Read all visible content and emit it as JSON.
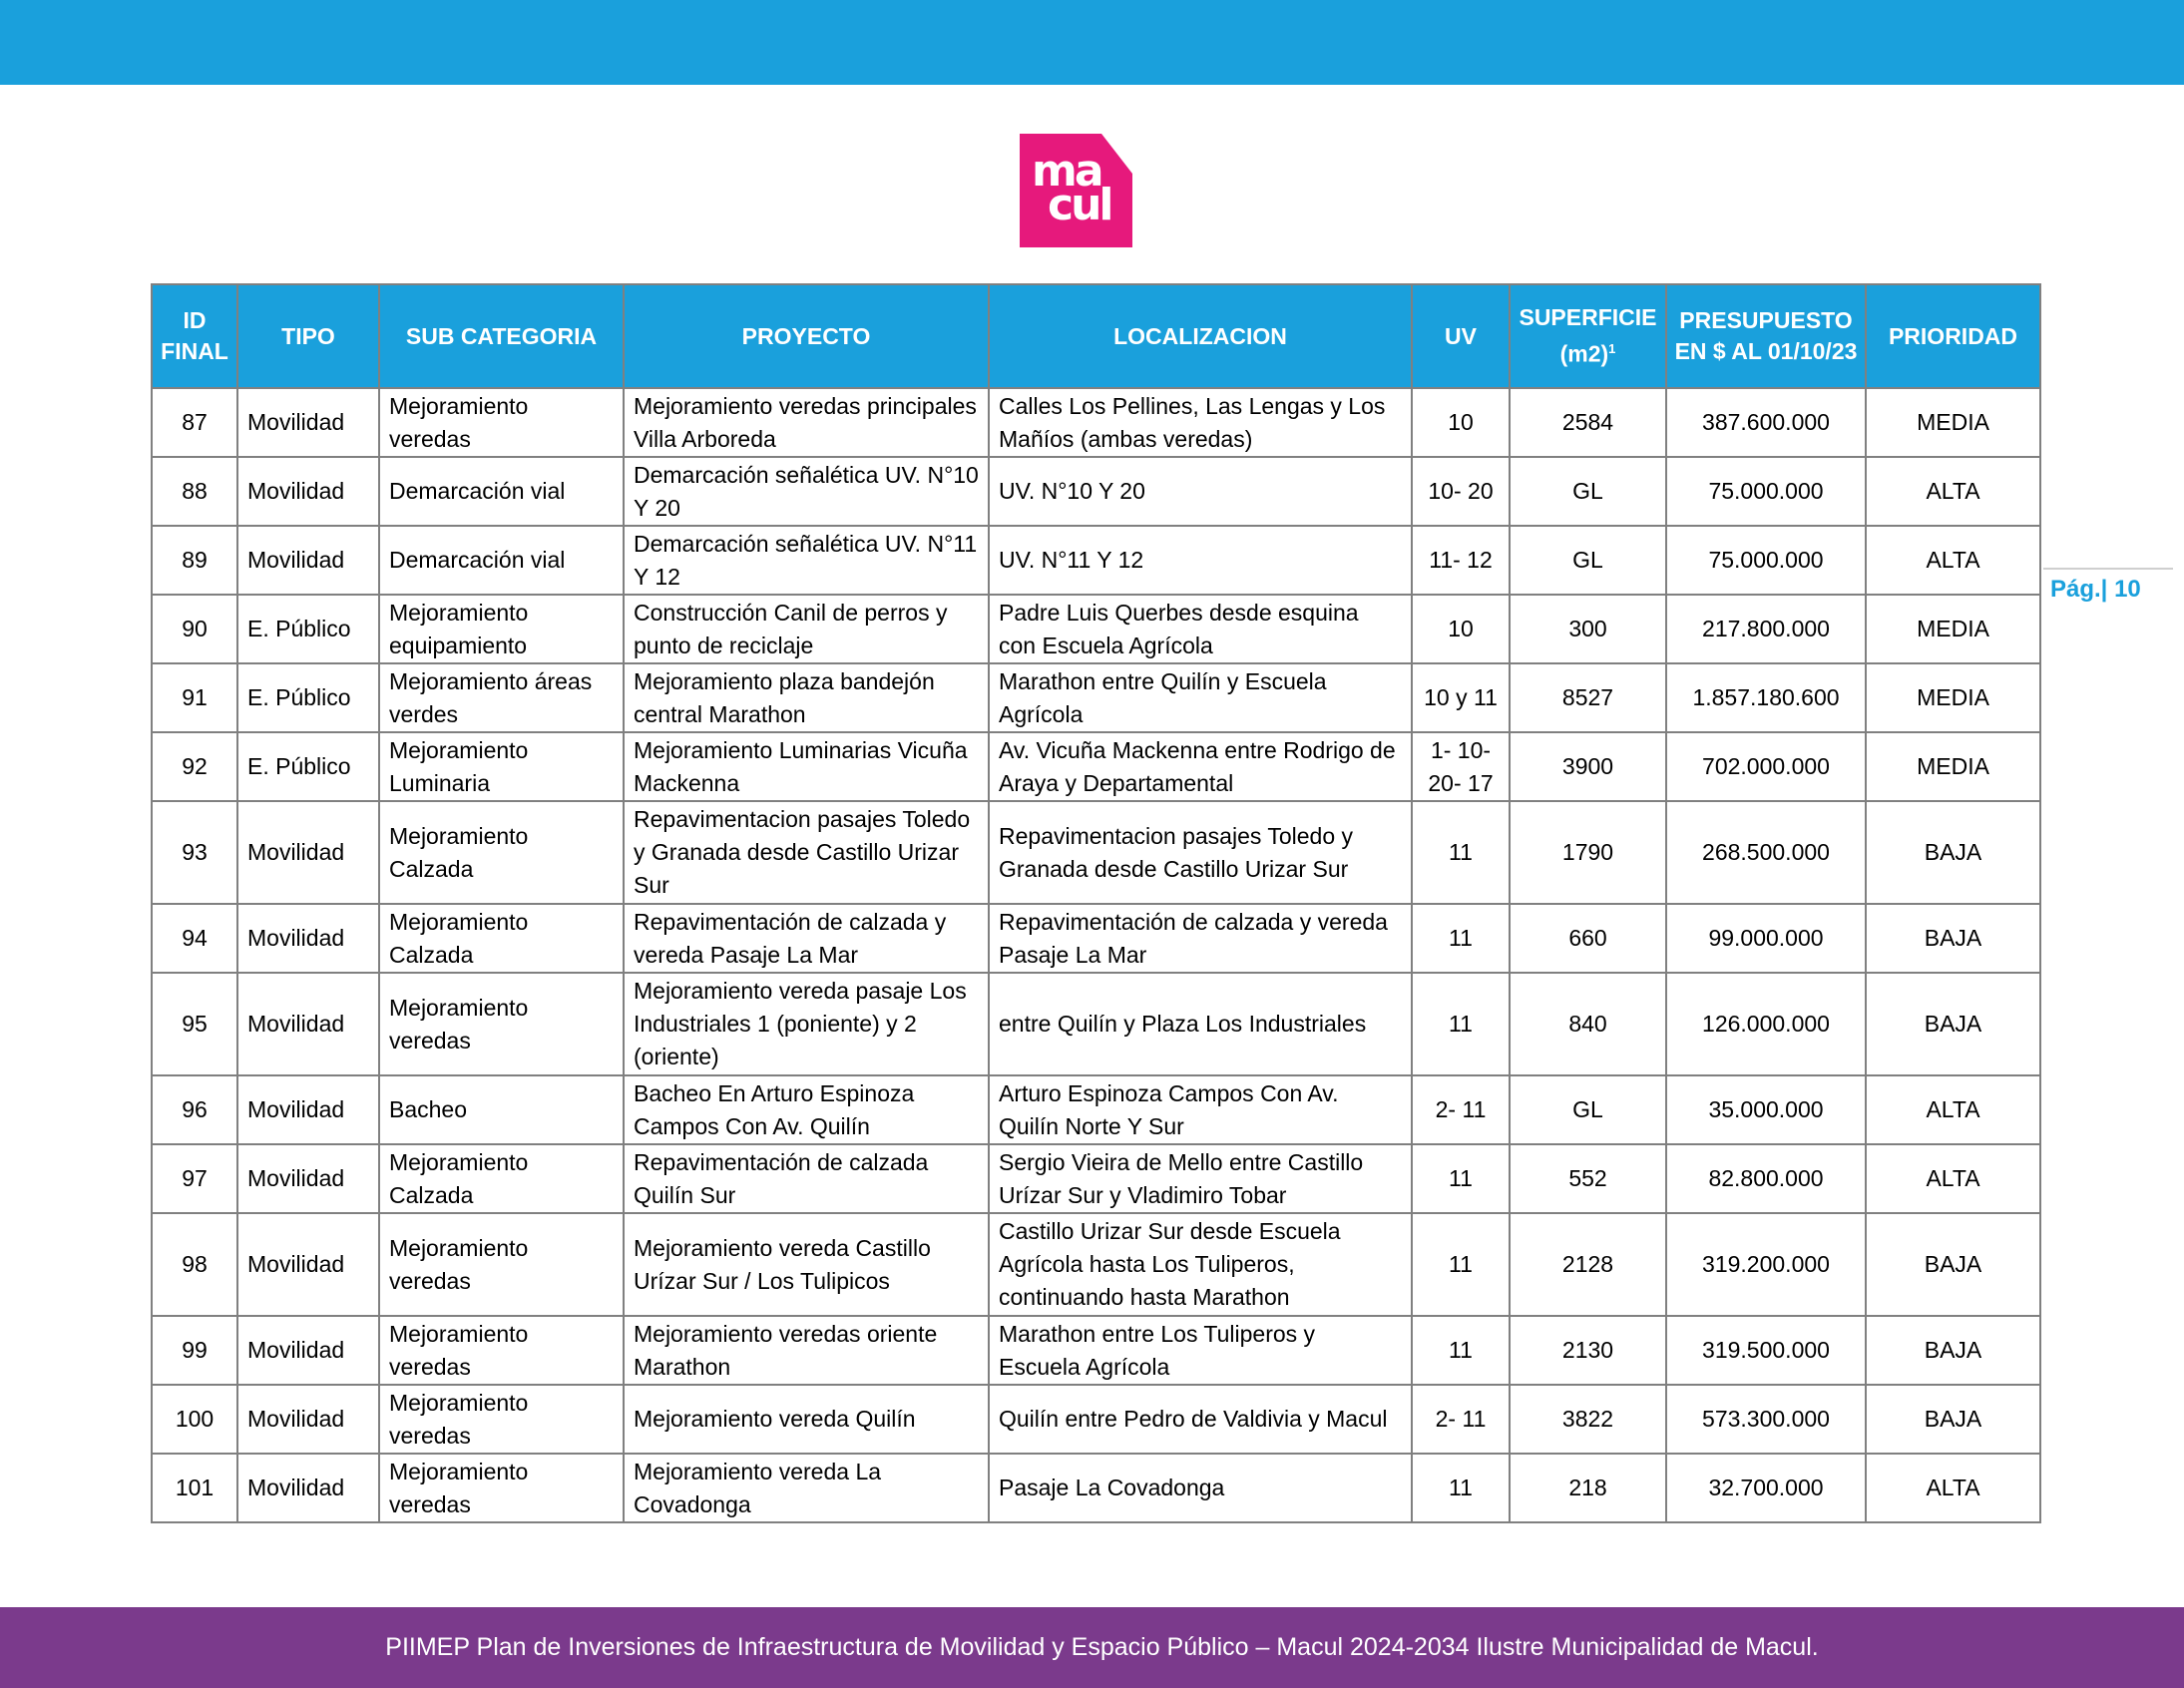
{
  "logo": {
    "line1": "ma",
    "line2": "cul",
    "brand_color": "#e6197c"
  },
  "colors": {
    "header_blue": "#1aa0dc",
    "footer_purple": "#7b3a8c"
  },
  "table": {
    "headers": {
      "id": "ID FINAL",
      "tipo": "TIPO",
      "sub": "SUB CATEGORIA",
      "proyecto": "PROYECTO",
      "loc": "LOCALIZACION",
      "uv": "UV",
      "sup": "SUPERFICIE (m2)",
      "sup_note": "1",
      "pres": "PRESUPUESTO EN $ AL 01/10/23",
      "prio": "PRIORIDAD"
    },
    "rows": [
      {
        "id": "87",
        "tipo": "Movilidad",
        "sub": "Mejoramiento veredas",
        "proyecto": "Mejoramiento veredas principales Villa Arboreda",
        "loc": "Calles Los Pellines, Las Lengas y Los Mañíos (ambas veredas)",
        "uv": "10",
        "sup": "2584",
        "pres": "387.600.000",
        "prio": "MEDIA"
      },
      {
        "id": "88",
        "tipo": "Movilidad",
        "sub": "Demarcación vial",
        "proyecto": "Demarcación señalética UV. N°10 Y 20",
        "loc": "UV. N°10 Y 20",
        "uv": "10- 20",
        "sup": "GL",
        "pres": "75.000.000",
        "prio": "ALTA"
      },
      {
        "id": "89",
        "tipo": "Movilidad",
        "sub": "Demarcación vial",
        "proyecto": "Demarcación señalética UV. N°11 Y 12",
        "loc": "UV. N°11 Y 12",
        "uv": "11- 12",
        "sup": "GL",
        "pres": "75.000.000",
        "prio": "ALTA"
      },
      {
        "id": "90",
        "tipo": "E. Público",
        "sub": "Mejoramiento equipamiento",
        "proyecto": "Construcción Canil de perros y punto de reciclaje",
        "loc": "Padre Luis Querbes desde esquina con Escuela Agrícola",
        "uv": "10",
        "sup": "300",
        "pres": "217.800.000",
        "prio": "MEDIA"
      },
      {
        "id": "91",
        "tipo": "E. Público",
        "sub": "Mejoramiento áreas verdes",
        "proyecto": "Mejoramiento plaza bandejón central Marathon",
        "loc": "Marathon entre Quilín y Escuela Agrícola",
        "uv": "10 y 11",
        "sup": "8527",
        "pres": "1.857.180.600",
        "prio": "MEDIA"
      },
      {
        "id": "92",
        "tipo": "E. Público",
        "sub": "Mejoramiento Luminaria",
        "proyecto": "Mejoramiento Luminarias Vicuña Mackenna",
        "loc": "Av. Vicuña Mackenna entre Rodrigo de Araya y Departamental",
        "uv": "1- 10- 20- 17",
        "sup": "3900",
        "pres": "702.000.000",
        "prio": "MEDIA"
      },
      {
        "id": "93",
        "tipo": "Movilidad",
        "sub": "Mejoramiento Calzada",
        "proyecto": "Repavimentacion pasajes Toledo y Granada desde Castillo Urizar Sur",
        "loc": "Repavimentacion pasajes Toledo y Granada desde Castillo Urizar Sur",
        "uv": "11",
        "sup": "1790",
        "pres": "268.500.000",
        "prio": "BAJA"
      },
      {
        "id": "94",
        "tipo": "Movilidad",
        "sub": "Mejoramiento Calzada",
        "proyecto": "Repavimentación de calzada y vereda Pasaje La Mar",
        "loc": "Repavimentación de calzada y vereda Pasaje La Mar",
        "uv": "11",
        "sup": "660",
        "pres": "99.000.000",
        "prio": "BAJA"
      },
      {
        "id": "95",
        "tipo": "Movilidad",
        "sub": "Mejoramiento veredas",
        "proyecto": "Mejoramiento vereda pasaje Los Industriales 1 (poniente) y 2 (oriente)",
        "loc": "entre Quilín y Plaza Los Industriales",
        "uv": "11",
        "sup": "840",
        "pres": "126.000.000",
        "prio": "BAJA"
      },
      {
        "id": "96",
        "tipo": "Movilidad",
        "sub": "Bacheo",
        "proyecto": "Bacheo En Arturo Espinoza Campos Con Av. Quilín",
        "loc": "Arturo Espinoza Campos Con Av. Quilín Norte Y Sur",
        "uv": "2- 11",
        "sup": "GL",
        "pres": "35.000.000",
        "prio": "ALTA"
      },
      {
        "id": "97",
        "tipo": "Movilidad",
        "sub": "Mejoramiento Calzada",
        "proyecto": "Repavimentación de calzada Quilín Sur",
        "loc": "Sergio Vieira de Mello entre Castillo Urízar Sur y Vladimiro Tobar",
        "uv": "11",
        "sup": "552",
        "pres": "82.800.000",
        "prio": "ALTA"
      },
      {
        "id": "98",
        "tipo": "Movilidad",
        "sub": "Mejoramiento veredas",
        "proyecto": "Mejoramiento vereda Castillo Urízar Sur / Los Tulipicos",
        "loc": "Castillo Urizar Sur desde Escuela Agrícola hasta Los Tuliperos, continuando hasta Marathon",
        "uv": "11",
        "sup": "2128",
        "pres": "319.200.000",
        "prio": "BAJA"
      },
      {
        "id": "99",
        "tipo": "Movilidad",
        "sub": "Mejoramiento veredas",
        "proyecto": "Mejoramiento veredas oriente Marathon",
        "loc": "Marathon entre Los Tuliperos y Escuela Agrícola",
        "uv": "11",
        "sup": "2130",
        "pres": "319.500.000",
        "prio": "BAJA"
      },
      {
        "id": "100",
        "tipo": "Movilidad",
        "sub": "Mejoramiento veredas",
        "proyecto": "Mejoramiento vereda Quilín",
        "loc": "Quilín entre Pedro de Valdivia y Macul",
        "uv": "2- 11",
        "sup": "3822",
        "pres": "573.300.000",
        "prio": "BAJA"
      },
      {
        "id": "101",
        "tipo": "Movilidad",
        "sub": "Mejoramiento veredas",
        "proyecto": "Mejoramiento vereda La Covadonga",
        "loc": "Pasaje La Covadonga",
        "uv": "11",
        "sup": "218",
        "pres": "32.700.000",
        "prio": "ALTA"
      }
    ]
  },
  "page_label": "Pág.| 10",
  "footer": "PIIMEP Plan de Inversiones de Infraestructura de Movilidad y Espacio Público – Macul 2024-2034   Ilustre Municipalidad de Macul."
}
